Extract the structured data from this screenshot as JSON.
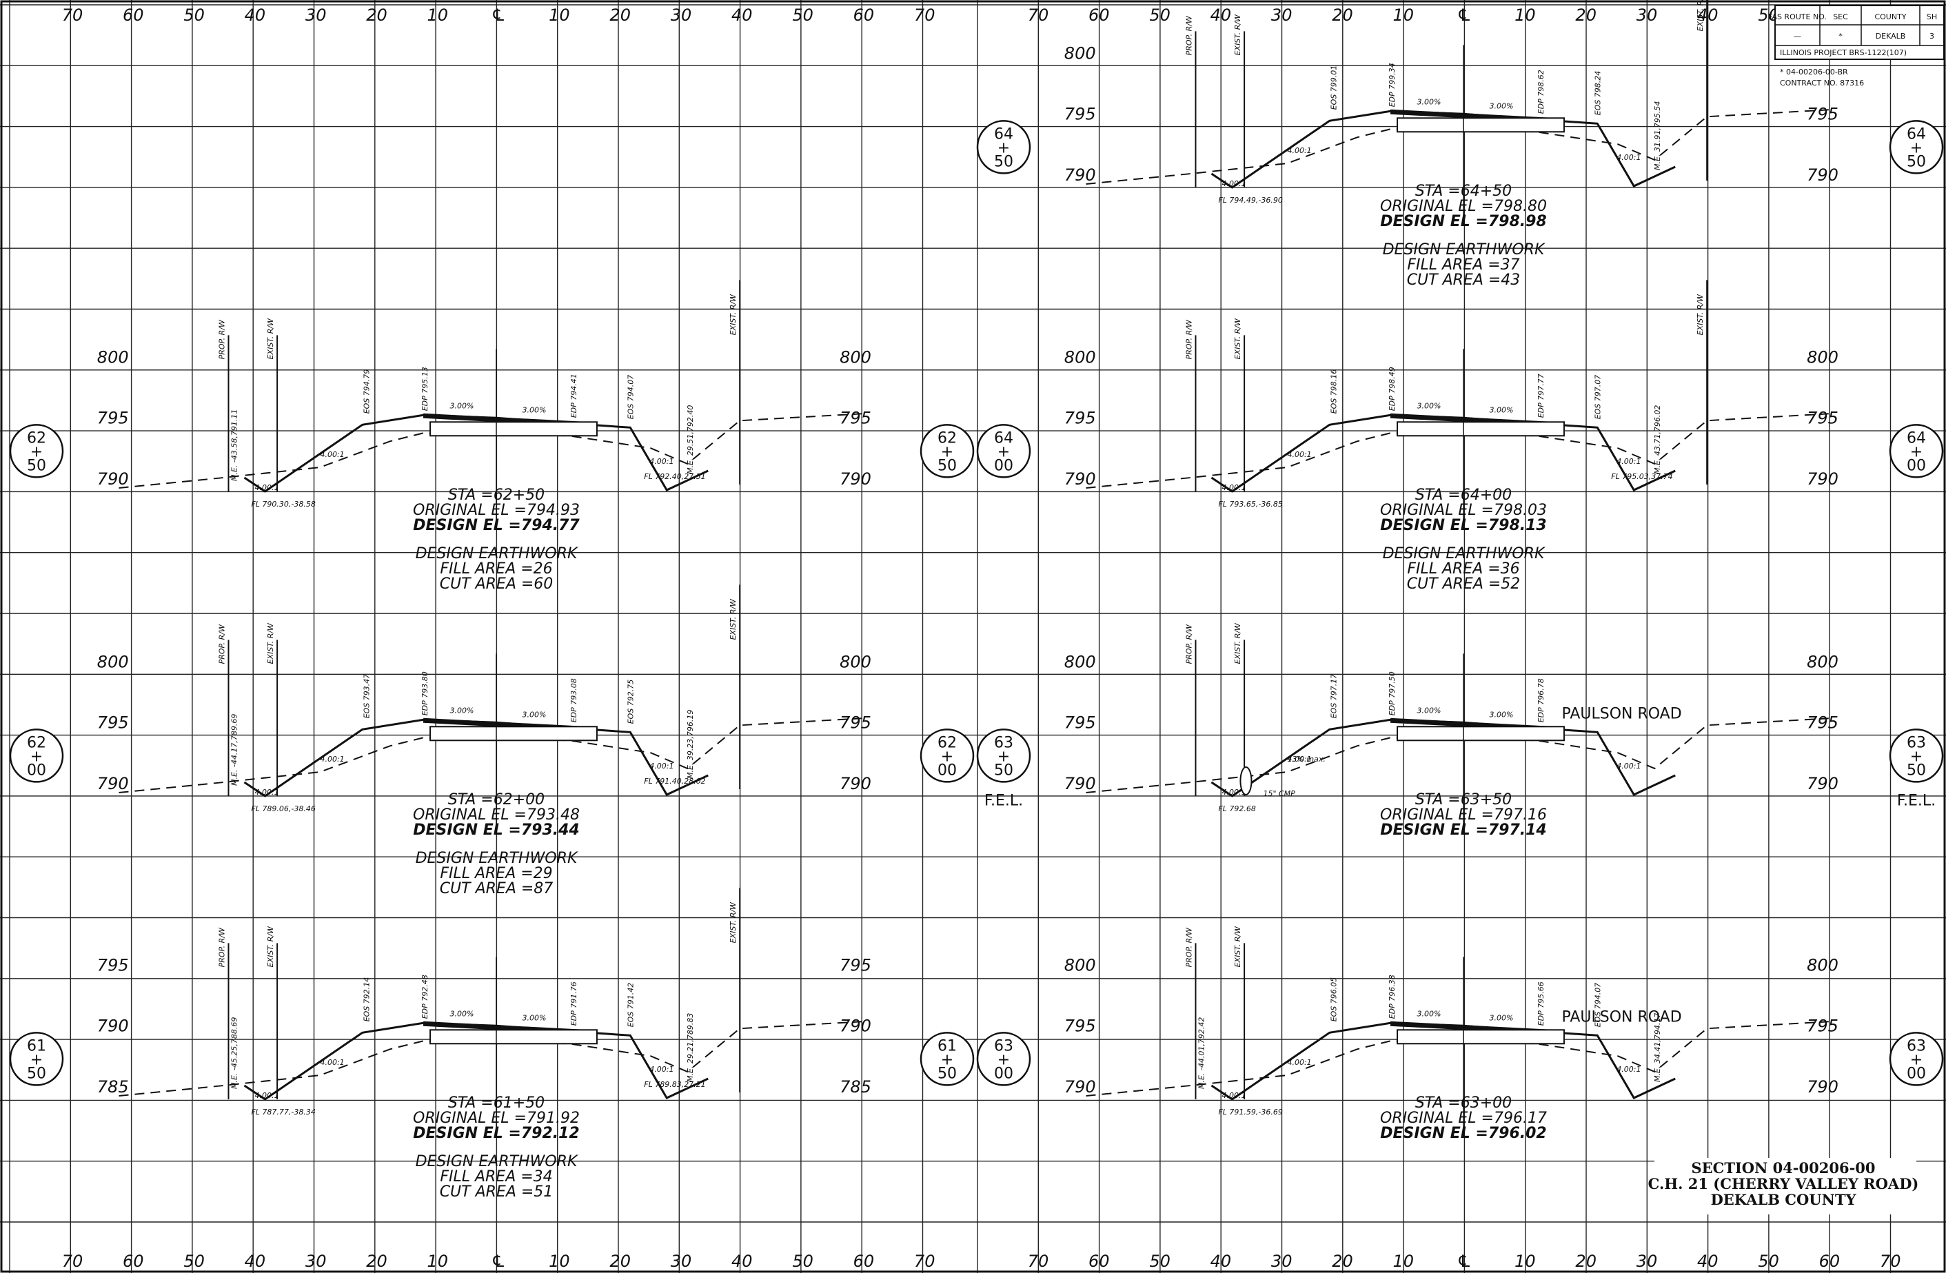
{
  "title_block": {
    "headers": [
      "FAS ROUTE NO.",
      "SEC",
      "COUNTY",
      "SH"
    ],
    "values": [
      "—",
      "*",
      "DEKALB",
      "3"
    ],
    "project": "ILLINOIS PROJECT BRS-1122(107)",
    "note1": "* 04-00206-00-BR",
    "note2": "CONTRACT NO. 87316"
  },
  "offset_ticks": [
    "70",
    "60",
    "50",
    "40",
    "30",
    "20",
    "10",
    "℄",
    "10",
    "20",
    "30",
    "40",
    "50",
    "60",
    "70"
  ],
  "fel": "F.E.L.",
  "labels": {
    "prop_rw": "PROP. R/W",
    "exist_rw": "EXIST. R/W",
    "slope": "4.00:1",
    "cross": "3.00%",
    "earthwork": "DESIGN EARTHWORK",
    "road": "PAULSON ROAD",
    "pipe": "15\" CMP",
    "max": "13% max."
  },
  "sections": [
    {
      "sta_top": "64",
      "sta_bot": "50",
      "sta": "STA =64+50",
      "orig": "ORIGINAL EL =798.80",
      "design": "DESIGN EL =798.98",
      "fill": "FILL AREA =37",
      "cut": "CUT AREA =43",
      "elevs": [
        "800",
        "795",
        "790"
      ],
      "fl": "FL 794.49,-36.90",
      "eos_l": "EOS 799.01",
      "edp_l": "EDP 799.34",
      "edp_r": "EDP 798.62",
      "eos_r": "EOS 798.24",
      "me_r": "M.E. 31.91,795.54"
    },
    {
      "sta_top": "62",
      "sta_bot": "50",
      "sta": "STA =62+50",
      "orig": "ORIGINAL EL =794.93",
      "design": "DESIGN EL =794.77",
      "fill": "FILL AREA =26",
      "cut": "CUT AREA =60",
      "elevs": [
        "800",
        "795",
        "790"
      ],
      "fl": "FL 790.30,-38.58",
      "fl_r": "FL 792.40,27.51",
      "eos_l": "EOS 794.79",
      "edp_l": "EDP 795.13",
      "edp_r": "EDP 794.41",
      "eos_r": "EOS 794.07",
      "me_l": "M.E. -43.58,791.11",
      "me_r": "M.E. 29.51,792.40"
    },
    {
      "sta_top": "64",
      "sta_bot": "00",
      "sta": "STA =64+00",
      "orig": "ORIGINAL EL =798.03",
      "design": "DESIGN EL =798.13",
      "fill": "FILL AREA =36",
      "cut": "CUT AREA =52",
      "elevs": [
        "800",
        "795",
        "790"
      ],
      "fl": "FL 793.65,-36.85",
      "fl_r": "FL 795.03,37.74",
      "eos_l": "EOS 798.16",
      "edp_l": "EDP 798.49",
      "edp_r": "EDP 797.77",
      "eos_r": "EOS 797.07",
      "me_r": "M.E. 43.71,796.02"
    },
    {
      "sta_top": "62",
      "sta_bot": "00",
      "sta": "STA =62+00",
      "orig": "ORIGINAL EL =793.48",
      "design": "DESIGN EL =793.44",
      "fill": "FILL AREA =29",
      "cut": "CUT AREA =87",
      "elevs": [
        "800",
        "795",
        "790"
      ],
      "fl": "FL 789.06,-38.46",
      "fl_r": "FL 791.40,28.02",
      "eos_l": "EOS 793.47",
      "edp_l": "EDP 793.80",
      "edp_r": "EDP 793.08",
      "eos_r": "EOS 792.75",
      "me_l": "M.E. -44.17,789.69",
      "me_r": "M.E. 39.23,796.19"
    },
    {
      "sta_top": "63",
      "sta_bot": "50",
      "sta": "STA =63+50",
      "orig": "ORIGINAL EL =797.16",
      "design": "DESIGN EL =797.14",
      "elevs": [
        "800",
        "795",
        "790"
      ],
      "fl": "FL 792.68",
      "eos_l": "EOS 797.17",
      "edp_l": "EDP 797.50",
      "edp_r": "EDP 796.78"
    },
    {
      "sta_top": "61",
      "sta_bot": "50",
      "sta": "STA =61+50",
      "orig": "ORIGINAL EL =791.92",
      "design": "DESIGN EL =792.12",
      "fill": "FILL AREA =34",
      "cut": "CUT AREA =51",
      "elevs": [
        "795",
        "790",
        "785"
      ],
      "fl": "FL 787.77,-38.34",
      "fl_r": "FL 789.83,27.21",
      "eos_l": "EOS 792.14",
      "edp_l": "EDP 792.48",
      "edp_r": "EDP 791.76",
      "eos_r": "EOS 791.42",
      "me_l": "M.E. -45.25,788.69",
      "me_r": "M.E. 29.21,789.83"
    },
    {
      "sta_top": "63",
      "sta_bot": "00",
      "sta": "STA =63+00",
      "orig": "ORIGINAL EL =796.17",
      "design": "DESIGN EL =796.02",
      "elevs": [
        "800",
        "795",
        "790"
      ],
      "fl": "FL 791.59,-36.69",
      "eos_l": "EOS 796.05",
      "edp_l": "EDP 796.38",
      "edp_r": "EDP 795.66",
      "eos_r": "EOS 794.07",
      "me_l": "M.E. -44.01,792.42",
      "me_r": "M.E. 34.41,794.17"
    }
  ],
  "footer": {
    "line1": "SECTION 04-00206-00",
    "line2": "C.H. 21 (CHERRY VALLEY ROAD)",
    "line3": "DEKALB COUNTY"
  }
}
